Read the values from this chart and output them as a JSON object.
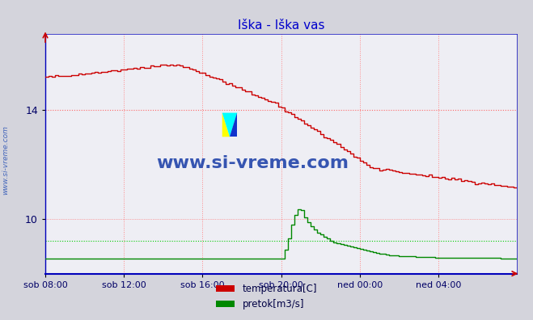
{
  "title": "Iška - Iška vas",
  "title_color": "#0000cc",
  "bg_color": "#d4d4dc",
  "plot_bg_color": "#eeeef4",
  "vgrid_color": "#ff8888",
  "hgrid_color_red": "#ff6666",
  "hgrid_color_green": "#00cc00",
  "axis_color": "#0000bb",
  "tick_color": "#000066",
  "xlabel_color": "#000066",
  "watermark_text": "www.si-vreme.com",
  "watermark_color": "#2244aa",
  "left_label": "www.si-vreme.com",
  "left_label_color": "#4466bb",
  "xlim": [
    0,
    288
  ],
  "ylim_lo": 8.0,
  "ylim_hi": 16.8,
  "yticks": [
    10,
    14
  ],
  "xtick_positions": [
    0,
    48,
    96,
    144,
    192,
    240
  ],
  "xtick_labels": [
    "sob 08:00",
    "sob 12:00",
    "sob 16:00",
    "sob 20:00",
    "ned 00:00",
    "ned 04:00"
  ],
  "vgrid_positions": [
    0,
    48,
    96,
    144,
    192,
    240,
    288
  ],
  "temp_hline": 14.0,
  "flow_hline_display": 9.2,
  "temp_color": "#cc0000",
  "flow_color": "#008800",
  "legend_items": [
    {
      "label": "temperatura[C]",
      "color": "#cc0000"
    },
    {
      "label": "pretok[m3/s]",
      "color": "#008800"
    }
  ]
}
